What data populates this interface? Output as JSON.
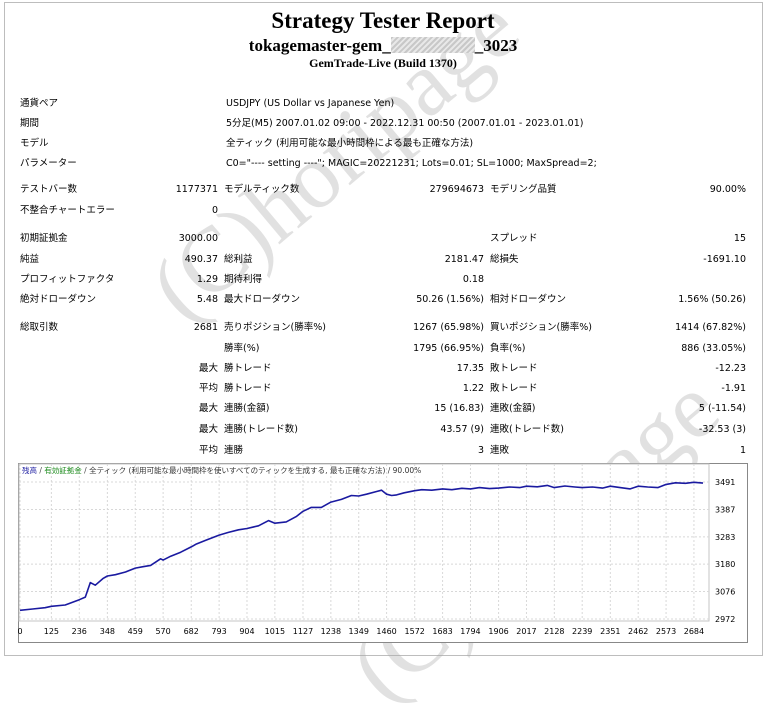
{
  "header": {
    "title": "Strategy Tester Report",
    "subtitle_prefix": "tokagemaster-gem_",
    "subtitle_suffix": "_3023",
    "build": "GemTrade-Live (Build 1370)"
  },
  "settings": {
    "pair_label": "通貨ペア",
    "pair_value": "USDJPY (US Dollar vs Japanese Yen)",
    "period_label": "期間",
    "period_value": "5分足(M5) 2007.01.02 09:00 - 2022.12.31 00:50 (2007.01.01 - 2023.01.01)",
    "model_label": "モデル",
    "model_value": "全ティック (利用可能な最小時間枠による最も正確な方法)",
    "params_label": "パラメーター",
    "params_value": "C0=\"---- setting ----\"; MAGIC=20221231; Lots=0.01; SL=1000; MaxSpread=2;"
  },
  "stats": {
    "bars_label": "テストバー数",
    "bars_value": "1177371",
    "ticks_label": "モデルティック数",
    "ticks_value": "279694673",
    "quality_label": "モデリング品質",
    "quality_value": "90.00%",
    "mismatch_label": "不整合チャートエラー",
    "mismatch_value": "0",
    "deposit_label": "初期証拠金",
    "deposit_value": "3000.00",
    "spread_label": "スプレッド",
    "spread_value": "15",
    "net_label": "純益",
    "net_value": "490.37",
    "gross_profit_label": "総利益",
    "gross_profit_value": "2181.47",
    "gross_loss_label": "総損失",
    "gross_loss_value": "-1691.10",
    "pf_label": "プロフィットファクタ",
    "pf_value": "1.29",
    "expected_label": "期待利得",
    "expected_value": "0.18",
    "abs_dd_label": "絶対ドローダウン",
    "abs_dd_value": "5.48",
    "max_dd_label": "最大ドローダウン",
    "max_dd_value": "50.26 (1.56%)",
    "rel_dd_label": "相対ドローダウン",
    "rel_dd_value": "1.56% (50.26)",
    "trades_label": "総取引数",
    "trades_value": "2681",
    "short_label": "売りポジション(勝率%)",
    "short_value": "1267 (65.98%)",
    "long_label": "買いポジション(勝率%)",
    "long_value": "1414 (67.82%)",
    "win_label": "勝率(%)",
    "win_value": "1795 (66.95%)",
    "loss_label": "負率(%)",
    "loss_value": "886 (33.05%)",
    "max_word": "最大",
    "avg_word": "平均",
    "max_win_label": "勝トレード",
    "max_win_value": "17.35",
    "max_loss_label": "敗トレード",
    "max_loss_value": "-12.23",
    "avg_win_label": "勝トレード",
    "avg_win_value": "1.22",
    "avg_loss_label": "敗トレード",
    "avg_loss_value": "-1.91",
    "cons_win_amt_label": "連勝(金額)",
    "cons_win_amt_value": "15 (16.83)",
    "cons_loss_amt_label": "連敗(金額)",
    "cons_loss_amt_value": "5 (-11.54)",
    "cons_win_cnt_label": "連勝(トレード数)",
    "cons_win_cnt_value": "43.57 (9)",
    "cons_loss_cnt_label": "連敗(トレード数)",
    "cons_loss_cnt_value": "-32.53 (3)",
    "avg_cons_win_label": "連勝",
    "avg_cons_win_value": "3",
    "avg_cons_loss_label": "連敗",
    "avg_cons_loss_value": "1"
  },
  "watermark": "(C)horipage",
  "chart_data": {
    "type": "line",
    "legend": {
      "item1": "残高",
      "sep1": " / ",
      "item2": "有効証拠金",
      "sep2": " / ",
      "rest": "全ティック (利用可能な最小時間枠を使いすべてのティックを生成する, 最も正確な方法) / 90.00%"
    },
    "line_color": "#1a1aa0",
    "x_ticks": [
      0,
      125,
      236,
      348,
      459,
      570,
      682,
      793,
      904,
      1015,
      1127,
      1238,
      1349,
      1460,
      1572,
      1683,
      1794,
      1906,
      2017,
      2128,
      2239,
      2351,
      2462,
      2573,
      2684
    ],
    "y_ticks": [
      3491,
      3387,
      3283,
      3180,
      3076,
      2972
    ],
    "xlim": [
      0,
      2740
    ],
    "ylim": [
      2972,
      3510
    ],
    "series": [
      {
        "x": [
          0,
          50,
          100,
          125,
          180,
          236,
          260,
          280,
          300,
          330,
          348,
          380,
          420,
          459,
          490,
          520,
          560,
          570,
          600,
          640,
          682,
          700,
          740,
          793,
          830,
          870,
          904,
          950,
          990,
          1015,
          1060,
          1100,
          1127,
          1160,
          1200,
          1238,
          1280,
          1320,
          1349,
          1380,
          1420,
          1440,
          1460,
          1480,
          1500,
          1530,
          1572,
          1600,
          1640,
          1683,
          1720,
          1760,
          1794,
          1830,
          1870,
          1906,
          1950,
          1990,
          2017,
          2060,
          2100,
          2128,
          2170,
          2210,
          2239,
          2280,
          2320,
          2351,
          2390,
          2430,
          2462,
          2500,
          2540,
          2573,
          2610,
          2650,
          2684,
          2720
        ],
        "y": [
          3005,
          3010,
          3015,
          3020,
          3025,
          3045,
          3055,
          3110,
          3100,
          3125,
          3135,
          3140,
          3150,
          3165,
          3170,
          3175,
          3200,
          3195,
          3210,
          3225,
          3245,
          3255,
          3270,
          3290,
          3300,
          3310,
          3315,
          3325,
          3345,
          3335,
          3340,
          3360,
          3380,
          3395,
          3395,
          3415,
          3425,
          3440,
          3438,
          3445,
          3455,
          3460,
          3445,
          3440,
          3442,
          3450,
          3458,
          3462,
          3460,
          3465,
          3462,
          3467,
          3465,
          3470,
          3466,
          3468,
          3472,
          3470,
          3475,
          3473,
          3478,
          3470,
          3476,
          3472,
          3470,
          3472,
          3468,
          3475,
          3470,
          3465,
          3475,
          3472,
          3470,
          3482,
          3488,
          3486,
          3490,
          3487
        ]
      }
    ]
  }
}
